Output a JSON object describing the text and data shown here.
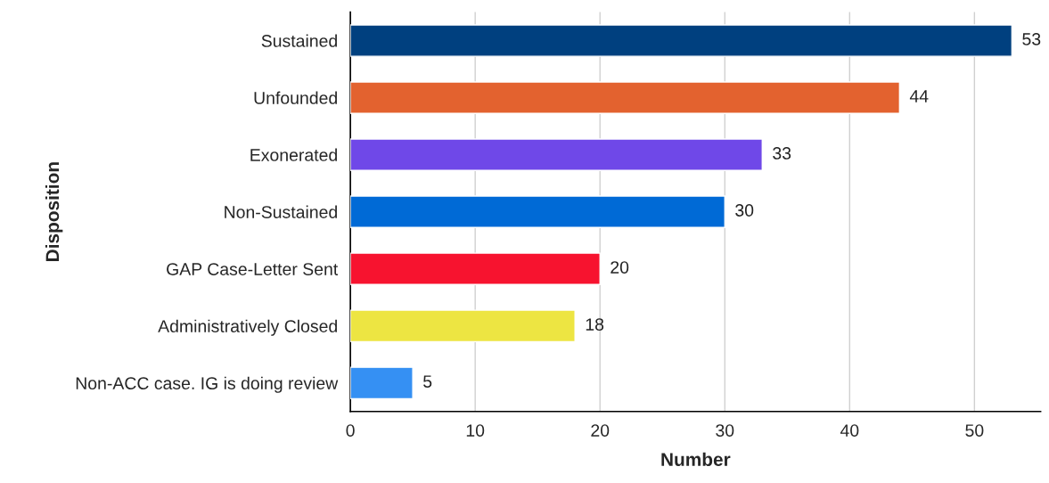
{
  "chart_data": {
    "type": "bar",
    "orientation": "horizontal",
    "xlabel": "Number",
    "ylabel": "Disposition",
    "categories": [
      "Sustained",
      "Unfounded",
      "Exonerated",
      "Non-Sustained",
      "GAP Case-Letter Sent",
      "Administratively Closed",
      "Non-ACC case. IG is doing review"
    ],
    "values": [
      53,
      44,
      33,
      30,
      20,
      18,
      5
    ],
    "colors": [
      "#00407f",
      "#e3622f",
      "#6f48e8",
      "#006ad6",
      "#f7132f",
      "#ede542",
      "#3590f3"
    ],
    "xlim": [
      0,
      55.3
    ],
    "xticks": [
      0,
      10,
      20,
      30,
      40,
      50
    ],
    "grid": "x",
    "data_labels": true,
    "legend": false
  }
}
